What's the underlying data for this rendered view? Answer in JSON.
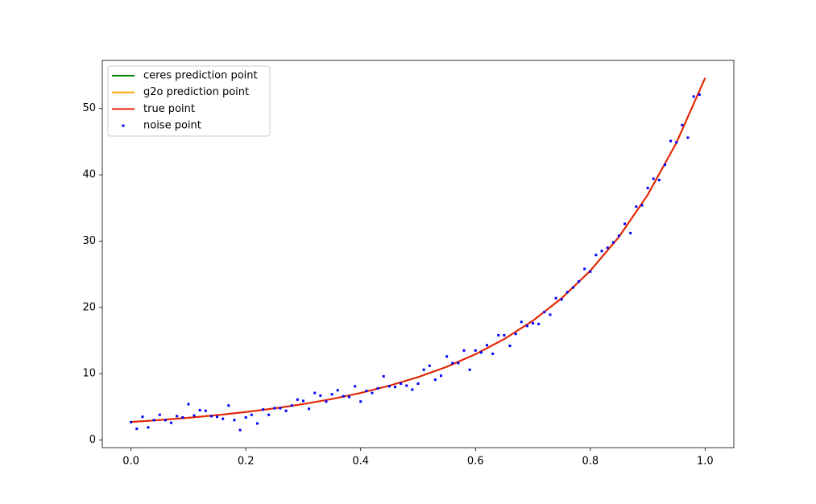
{
  "chart_data": {
    "type": "line",
    "xlim": [
      -0.05,
      1.05
    ],
    "ylim": [
      -1.15,
      57.25
    ],
    "xticks": [
      {
        "value": 0,
        "label": "0.0"
      },
      0.2,
      0.4,
      0.6,
      0.8,
      {
        "value": 1,
        "label": "1.0"
      }
    ],
    "yticks": [
      0,
      10,
      20,
      30,
      40,
      50
    ],
    "grid": false,
    "legend": "upper left",
    "series": [
      {
        "name": "ceres prediction point",
        "type": "line",
        "color": "#008000",
        "x": [
          0,
          0.05,
          0.1,
          0.15,
          0.2,
          0.25,
          0.3,
          0.35,
          0.4,
          0.45,
          0.5,
          0.55,
          0.6,
          0.65,
          0.7,
          0.75,
          0.8,
          0.85,
          0.9,
          0.95,
          1
        ],
        "values": [
          2.718,
          3.012,
          3.353,
          3.753,
          4.221,
          4.771,
          5.419,
          6.188,
          7.099,
          8.187,
          9.488,
          11.05,
          12.94,
          15.22,
          17.99,
          21.38,
          25.53,
          30.65,
          36.97,
          44.83,
          54.6
        ]
      },
      {
        "name": "g2o prediction point",
        "type": "line",
        "color": "#ffa500",
        "x": [
          0,
          0.05,
          0.1,
          0.15,
          0.2,
          0.25,
          0.3,
          0.35,
          0.4,
          0.45,
          0.5,
          0.55,
          0.6,
          0.65,
          0.7,
          0.75,
          0.8,
          0.85,
          0.9,
          0.95,
          1
        ],
        "values": [
          2.718,
          3.012,
          3.353,
          3.753,
          4.221,
          4.771,
          5.419,
          6.188,
          7.099,
          8.187,
          9.488,
          11.05,
          12.94,
          15.22,
          17.99,
          21.38,
          25.53,
          30.65,
          36.97,
          44.83,
          54.6
        ]
      },
      {
        "name": "true point",
        "type": "line",
        "color": "#e8210d",
        "x": [
          0,
          0.05,
          0.1,
          0.15,
          0.2,
          0.25,
          0.3,
          0.35,
          0.4,
          0.45,
          0.5,
          0.55,
          0.6,
          0.65,
          0.7,
          0.75,
          0.8,
          0.85,
          0.9,
          0.95,
          1
        ],
        "values": [
          2.718,
          3.012,
          3.353,
          3.753,
          4.221,
          4.771,
          5.419,
          6.188,
          7.099,
          8.187,
          9.488,
          11.05,
          12.94,
          15.22,
          17.99,
          21.38,
          25.53,
          30.65,
          36.97,
          44.83,
          54.6
        ]
      },
      {
        "name": "noise point",
        "type": "scatter",
        "color": "#0000ff",
        "x": [
          0,
          0.01,
          0.02,
          0.03,
          0.04,
          0.05,
          0.06,
          0.07,
          0.08,
          0.09,
          0.1,
          0.11,
          0.12,
          0.13,
          0.14,
          0.15,
          0.16,
          0.17,
          0.18,
          0.19,
          0.2,
          0.21,
          0.22,
          0.23,
          0.24,
          0.25,
          0.26,
          0.27,
          0.28,
          0.29,
          0.3,
          0.31,
          0.32,
          0.33,
          0.34,
          0.35,
          0.36,
          0.37,
          0.38,
          0.39,
          0.4,
          0.41,
          0.42,
          0.43,
          0.44,
          0.45,
          0.46,
          0.47,
          0.48,
          0.49,
          0.5,
          0.51,
          0.52,
          0.53,
          0.54,
          0.55,
          0.56,
          0.57,
          0.58,
          0.59,
          0.6,
          0.61,
          0.62,
          0.63,
          0.64,
          0.65,
          0.66,
          0.67,
          0.68,
          0.69,
          0.7,
          0.71,
          0.72,
          0.73,
          0.74,
          0.75,
          0.76,
          0.77,
          0.78,
          0.79,
          0.8,
          0.81,
          0.82,
          0.83,
          0.84,
          0.85,
          0.86,
          0.87,
          0.88,
          0.89,
          0.9,
          0.91,
          0.92,
          0.93,
          0.94,
          0.95,
          0.96,
          0.97,
          0.98,
          0.99
        ],
        "values": [
          2.7,
          1.7,
          3.5,
          1.9,
          3.0,
          3.8,
          3.0,
          2.6,
          3.6,
          3.4,
          5.4,
          3.7,
          4.5,
          4.4,
          3.6,
          3.5,
          3.2,
          5.2,
          3.0,
          1.5,
          3.4,
          3.8,
          2.5,
          4.6,
          3.8,
          4.8,
          4.8,
          4.4,
          5.2,
          6.1,
          5.9,
          4.7,
          7.1,
          6.7,
          5.8,
          6.9,
          7.5,
          6.6,
          6.5,
          8.1,
          5.8,
          7.4,
          7.1,
          7.8,
          9.6,
          8.1,
          8.0,
          8.5,
          8.2,
          7.6,
          8.5,
          10.6,
          11.2,
          9.1,
          9.7,
          12.6,
          11.6,
          11.6,
          13.5,
          10.6,
          13.5,
          13.2,
          14.3,
          13.0,
          15.8,
          15.8,
          14.2,
          16.0,
          17.8,
          17.2,
          17.6,
          17.5,
          19.3,
          18.9,
          21.4,
          21.2,
          22.3,
          23.0,
          23.9,
          25.8,
          25.4,
          27.9,
          28.5,
          29.0,
          29.8,
          30.8,
          32.6,
          31.2,
          35.2,
          35.4,
          38.0,
          39.4,
          39.2,
          41.5,
          45.1,
          44.9,
          47.5,
          45.6,
          51.8,
          52.1
        ]
      }
    ]
  }
}
